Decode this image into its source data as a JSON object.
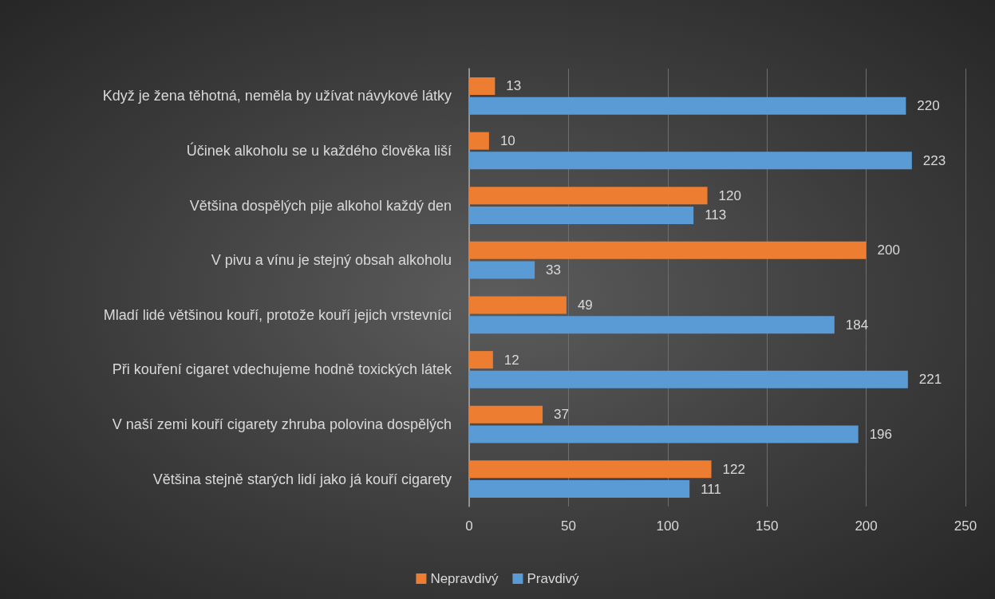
{
  "chart_data": {
    "type": "bar",
    "orientation": "horizontal",
    "categories": [
      "Když je žena těhotná, neměla by užívat návykové látky",
      "Účinek alkoholu se u každého člověka liší",
      "Většina dospělých pije alkohol každý den",
      "V pivu a vínu je stejný obsah alkoholu",
      "Mladí lidé většinou kouří, protože kouří jejich vrstevníci",
      "Při kouření cigaret vdechujeme hodně toxických látek",
      "V naší zemi kouří cigarety zhruba polovina dospělých",
      "Většina stejně starých lidí jako já kouří cigarety"
    ],
    "series": [
      {
        "name": "Nepravdivý",
        "color": "#ed7d31",
        "values": [
          13,
          10,
          120,
          200,
          49,
          12,
          37,
          122
        ]
      },
      {
        "name": "Pravdivý",
        "color": "#5b9bd5",
        "values": [
          220,
          223,
          113,
          33,
          184,
          221,
          196,
          111
        ]
      }
    ],
    "xlim": [
      0,
      250
    ],
    "xticks": [
      0,
      50,
      100,
      150,
      200,
      250
    ],
    "grid": "x",
    "legend": "bottom",
    "data_labels": true
  }
}
